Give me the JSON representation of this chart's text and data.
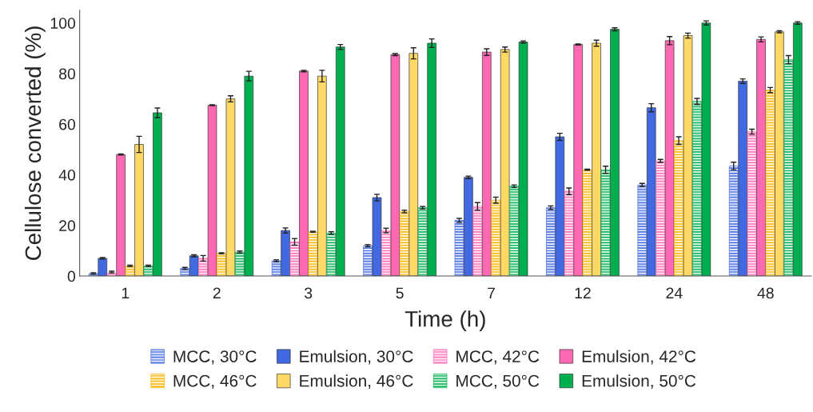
{
  "chart_data": {
    "type": "bar",
    "xlabel": "Time (h)",
    "ylabel": "Cellulose converted (%)",
    "categories": [
      "1",
      "2",
      "3",
      "5",
      "7",
      "12",
      "24",
      "48"
    ],
    "ylim": [
      0,
      105
    ],
    "yticks": [
      0,
      20,
      40,
      60,
      80,
      100
    ],
    "grid": false,
    "legend": "bottom",
    "series": [
      {
        "name": "MCC, 30°C",
        "color": "#4169e1",
        "values": [
          1,
          3,
          6,
          12,
          22,
          27,
          36,
          43.5
        ],
        "errors": [
          0.3,
          0.4,
          0.4,
          0.4,
          0.8,
          0.7,
          0.6,
          1.5
        ]
      },
      {
        "name": "Emulsion, 30°C",
        "color": "#4169e1",
        "values": [
          7,
          8,
          18,
          31,
          39,
          55,
          66.5,
          77
        ],
        "errors": [
          0.3,
          0.4,
          1,
          1.3,
          0.5,
          1.4,
          1.6,
          0.9
        ]
      },
      {
        "name": "MCC, 42°C",
        "color": "#ff69b4",
        "values": [
          1.2,
          7,
          13.5,
          18,
          27.5,
          33.5,
          45.5,
          57
        ],
        "errors": [
          [
            1.2,
            1.9
          ],
          1.1,
          1.3,
          0.9,
          1.5,
          1.3,
          0.6,
          1
        ]
      },
      {
        "name": "Emulsion, 42°C",
        "color": "#ff69b4",
        "values": [
          48,
          67.5,
          81,
          87.5,
          88.5,
          91.5,
          93,
          93.5
        ],
        "errors": [
          0.2,
          0.2,
          0.3,
          0.4,
          1.3,
          0.2,
          1.6,
          1
        ]
      },
      {
        "name": "MCC, 46°C",
        "color": "#f7b500",
        "values": [
          4,
          9,
          17.5,
          25.5,
          30,
          42,
          53.5,
          73.5
        ],
        "errors": [
          0.3,
          0.2,
          0.2,
          0.5,
          1.2,
          0.2,
          1.5,
          1
        ]
      },
      {
        "name": "Emulsion, 46°C",
        "color": "#ffd966",
        "values": [
          52,
          70,
          79,
          88,
          89.5,
          92,
          95,
          96.5
        ],
        "errors": [
          3.2,
          1.2,
          2.3,
          2.2,
          1,
          1.2,
          1,
          0.4
        ]
      },
      {
        "name": "MCC, 50°C",
        "color": "#00b050",
        "values": [
          4,
          9.5,
          17,
          27,
          35.5,
          42,
          69,
          85.5
        ],
        "errors": [
          0.3,
          0.4,
          0.5,
          0.5,
          0.5,
          1.4,
          1.2,
          1.6
        ]
      },
      {
        "name": "Emulsion, 50°C",
        "color": "#00b050",
        "values": [
          64.5,
          79,
          90.5,
          92,
          92.5,
          97.5,
          100,
          100
        ],
        "errors": [
          1.9,
          1.9,
          1,
          1.7,
          0.4,
          0.6,
          0.8,
          0.5
        ]
      }
    ]
  }
}
